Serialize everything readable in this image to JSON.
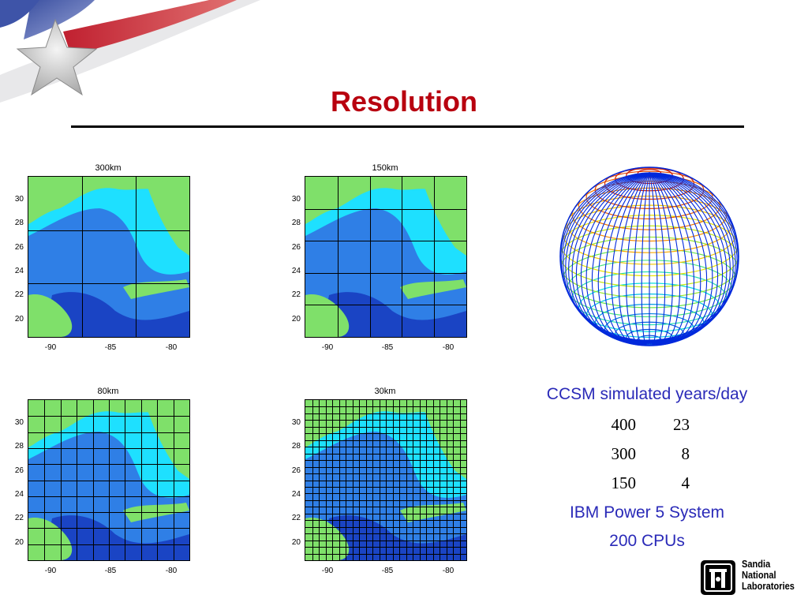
{
  "slide": {
    "title": "Resolution"
  },
  "panels": [
    {
      "label": "300km",
      "y_ticks": [
        "30",
        "28",
        "26",
        "24",
        "22",
        "20"
      ],
      "x_ticks": [
        "-90",
        "-85",
        "-80"
      ],
      "grid_divisions": 3
    },
    {
      "label": "150km",
      "y_ticks": [
        "30",
        "28",
        "26",
        "24",
        "22",
        "20"
      ],
      "x_ticks": [
        "-90",
        "-85",
        "-80"
      ],
      "grid_divisions": 5
    },
    {
      "label": "80km",
      "y_ticks": [
        "30",
        "28",
        "26",
        "24",
        "22",
        "20"
      ],
      "x_ticks": [
        "-90",
        "-85",
        "-80"
      ],
      "grid_divisions": 10
    },
    {
      "label": "30km",
      "y_ticks": [
        "30",
        "28",
        "26",
        "24",
        "22",
        "20"
      ],
      "x_ticks": [
        "-90",
        "-85",
        "-80"
      ],
      "grid_divisions": 24
    }
  ],
  "info": {
    "heading": "CCSM simulated years/day",
    "rows": [
      {
        "resolution": "400",
        "years": "23"
      },
      {
        "resolution": "300",
        "years": "8"
      },
      {
        "resolution": "150",
        "years": "4"
      }
    ],
    "system": "IBM Power 5 System",
    "cpus": "200 CPUs"
  },
  "footer": {
    "logo_text": [
      "Sandia",
      "National",
      "Laboratories"
    ]
  },
  "colors": {
    "title": "#b8000f",
    "info_blue": "#2a2ab8",
    "map_green": "#7fe06a",
    "map_cyan": "#1ee0ff",
    "map_blue": "#2f7fe6",
    "map_deep": "#1a44c4"
  }
}
